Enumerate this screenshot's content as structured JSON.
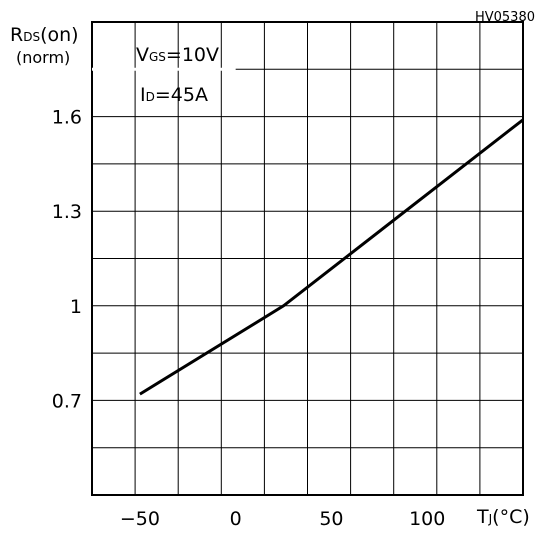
{
  "chart_data": {
    "type": "line",
    "figure_code": "HV05380",
    "ylabel_main": "R",
    "ylabel_sub": "DS",
    "ylabel_tail": "(on)",
    "ylabel_line2": "(norm)",
    "xlabel_main": "T",
    "xlabel_sub": "J",
    "xlabel_tail": "(°C)",
    "annotation_line1": {
      "main": "V",
      "sub": "GS",
      "tail": "=10V"
    },
    "annotation_line2": {
      "main": "I",
      "sub": "D",
      "tail": "=45A"
    },
    "xlim": [
      -75,
      150
    ],
    "ylim": [
      0.4,
      1.9
    ],
    "x_ticks": [
      -50,
      0,
      50,
      100
    ],
    "x_tick_labels": [
      "−50",
      "0",
      "50",
      "100"
    ],
    "y_ticks": [
      0.7,
      1,
      1.3,
      1.6
    ],
    "y_tick_labels": [
      "0.7",
      "1",
      "1.3",
      "1.6"
    ],
    "grid": true,
    "series": [
      {
        "x": [
          -50,
          25,
          150
        ],
        "y": [
          0.72,
          1.0,
          1.59
        ]
      }
    ]
  }
}
